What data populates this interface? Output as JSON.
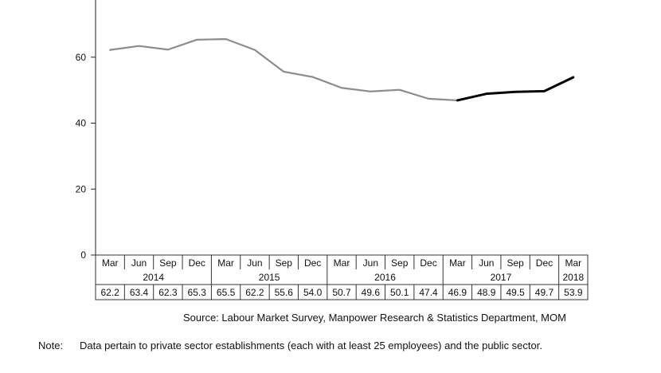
{
  "chart_data": {
    "type": "line",
    "y_ticks": [
      "0",
      "20",
      "40",
      "60"
    ],
    "ylim": [
      0,
      75
    ],
    "x": [
      "Mar",
      "Jun",
      "Sep",
      "Dec",
      "Mar",
      "Jun",
      "Sep",
      "Dec",
      "Mar",
      "Jun",
      "Sep",
      "Dec",
      "Mar",
      "Jun",
      "Sep",
      "Dec",
      "Mar"
    ],
    "years": [
      {
        "label": "2014",
        "span": [
          0,
          3
        ]
      },
      {
        "label": "2015",
        "span": [
          4,
          7
        ]
      },
      {
        "label": "2016",
        "span": [
          8,
          11
        ]
      },
      {
        "label": "2017",
        "span": [
          12,
          15
        ]
      },
      {
        "label": "2018",
        "span": [
          16,
          16
        ]
      }
    ],
    "values": [
      "62.2",
      "63.4",
      "62.3",
      "65.3",
      "65.5",
      "62.2",
      "55.6",
      "54.0",
      "50.7",
      "49.6",
      "50.1",
      "47.4",
      "46.9",
      "48.9",
      "49.5",
      "49.7",
      "53.9"
    ],
    "segments": [
      {
        "from": 0,
        "to": 12,
        "color": "#8c8c8c"
      },
      {
        "from": 12,
        "to": 16,
        "color": "#000000"
      }
    ]
  },
  "source": "Source: Labour Market Survey, Manpower Research & Statistics Department, MOM",
  "note": {
    "label": "Note:",
    "text": "Data pertain to private sector establishments (each with at least 25 employees) and the public sector."
  }
}
